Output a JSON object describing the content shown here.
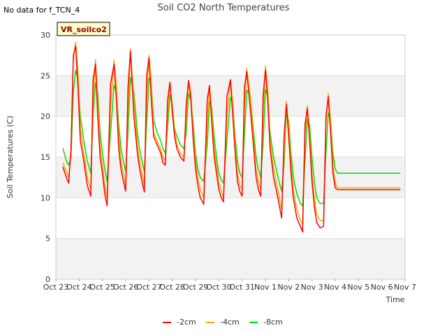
{
  "chart_data": {
    "type": "line",
    "title": "Soil CO2 North Temperatures",
    "note": "No data for f_TCN_4",
    "station_tag": "VR_soilco2",
    "xlabel": "Time",
    "ylabel": "Soil Temperatures (C)",
    "xlim": [
      0,
      15
    ],
    "ylim": [
      0,
      30
    ],
    "x_tick_labels": [
      "Oct 23",
      "Oct 24",
      "Oct 25",
      "Oct 26",
      "Oct 27",
      "Oct 28",
      "Oct 29",
      "Oct 30",
      "Oct 31",
      "Nov 1",
      "Nov 2",
      "Nov 3",
      "Nov 4",
      "Nov 5",
      "Nov 6",
      "Nov 7"
    ],
    "y_ticks": [
      0,
      5,
      10,
      15,
      20,
      25,
      30
    ],
    "grid": true,
    "legend_position": "bottom-center",
    "x_unit": "days since Oct 23",
    "series": [
      {
        "name": "-2cm",
        "color": "#ff0000",
        "x": [
          0.3,
          0.45,
          0.55,
          0.65,
          0.75,
          0.85,
          0.95,
          1.05,
          1.2,
          1.35,
          1.5,
          1.6,
          1.7,
          1.8,
          1.9,
          2.0,
          2.1,
          2.2,
          2.35,
          2.5,
          2.6,
          2.7,
          2.8,
          2.9,
          3.0,
          3.1,
          3.2,
          3.35,
          3.5,
          3.6,
          3.7,
          3.8,
          3.9,
          4.0,
          4.1,
          4.2,
          4.35,
          4.5,
          4.6,
          4.7,
          4.8,
          4.9,
          5.0,
          5.1,
          5.2,
          5.35,
          5.5,
          5.6,
          5.7,
          5.8,
          5.9,
          6.0,
          6.1,
          6.2,
          6.35,
          6.5,
          6.6,
          6.7,
          6.8,
          6.9,
          7.0,
          7.1,
          7.2,
          7.35,
          7.5,
          7.6,
          7.7,
          7.8,
          7.9,
          8.0,
          8.1,
          8.2,
          8.35,
          8.5,
          8.6,
          8.7,
          8.8,
          8.9,
          9.0,
          9.1,
          9.2,
          9.35,
          9.5,
          9.6,
          9.7,
          9.8,
          9.9,
          10.0,
          10.1,
          10.2,
          10.35,
          10.5,
          10.6,
          10.7,
          10.8,
          10.9,
          11.0,
          11.1,
          11.2,
          11.35,
          11.5,
          11.6,
          11.7,
          11.8,
          11.9,
          12.0,
          12.1,
          12.2,
          12.35,
          12.5,
          12.6,
          12.7,
          12.8,
          12.9,
          13.0,
          13.1,
          13.2,
          13.35,
          13.5,
          13.6,
          13.7,
          13.8,
          13.9,
          14.0,
          14.1,
          14.2,
          14.35,
          14.5,
          14.6,
          14.7,
          14.8
        ],
        "values": [
          13.8,
          12.5,
          11.8,
          16.0,
          27.5,
          28.6,
          23.5,
          17.0,
          14.5,
          11.5,
          10.2,
          24.5,
          26.4,
          20.0,
          15.0,
          13.0,
          10.5,
          9.0,
          24.0,
          26.4,
          22.0,
          16.0,
          13.5,
          12.0,
          10.8,
          23.5,
          28.0,
          20.0,
          15.5,
          13.5,
          12.0,
          10.7,
          25.0,
          27.2,
          22.0,
          17.5,
          16.5,
          15.5,
          14.3,
          14.0,
          22.0,
          24.2,
          20.5,
          17.5,
          16.0,
          15.0,
          14.5,
          21.5,
          24.4,
          22.0,
          17.0,
          13.5,
          11.5,
          10.0,
          9.2,
          22.0,
          23.8,
          19.0,
          15.0,
          13.0,
          11.0,
          10.0,
          9.5,
          22.5,
          24.5,
          20.0,
          15.5,
          12.0,
          10.8,
          10.2,
          23.5,
          25.5,
          21.0,
          16.0,
          12.5,
          11.0,
          10.2,
          22.5,
          25.7,
          22.0,
          16.0,
          12.5,
          10.5,
          9.0,
          7.5,
          17.5,
          21.5,
          17.5,
          13.0,
          10.0,
          7.5,
          6.5,
          5.8,
          19.0,
          21.0,
          17.0,
          12.0,
          9.0,
          7.0,
          6.3,
          6.5,
          20.0,
          22.4,
          18.0,
          13.0,
          11.2,
          11.0,
          11.0,
          11.0,
          11.0,
          11.0,
          11.0,
          11.0,
          11.0,
          11.0,
          11.0,
          11.0,
          11.0,
          11.0,
          11.0,
          11.0,
          11.0,
          11.0,
          11.0,
          11.0,
          11.0,
          11.0,
          11.0,
          11.0,
          11.0,
          11.0
        ]
      },
      {
        "name": "-4cm",
        "color": "#ffa500",
        "x": [
          0.3,
          0.45,
          0.55,
          0.65,
          0.75,
          0.85,
          0.95,
          1.05,
          1.2,
          1.35,
          1.5,
          1.6,
          1.7,
          1.8,
          1.9,
          2.0,
          2.1,
          2.2,
          2.35,
          2.5,
          2.6,
          2.7,
          2.8,
          2.9,
          3.0,
          3.1,
          3.2,
          3.35,
          3.5,
          3.6,
          3.7,
          3.8,
          3.9,
          4.0,
          4.1,
          4.2,
          4.35,
          4.5,
          4.6,
          4.7,
          4.8,
          4.9,
          5.0,
          5.1,
          5.2,
          5.35,
          5.5,
          5.6,
          5.7,
          5.8,
          5.9,
          6.0,
          6.1,
          6.2,
          6.35,
          6.5,
          6.6,
          6.7,
          6.8,
          6.9,
          7.0,
          7.1,
          7.2,
          7.35,
          7.5,
          7.6,
          7.7,
          7.8,
          7.9,
          8.0,
          8.1,
          8.2,
          8.35,
          8.5,
          8.6,
          8.7,
          8.8,
          8.9,
          9.0,
          9.1,
          9.2,
          9.35,
          9.5,
          9.6,
          9.7,
          9.8,
          9.9,
          10.0,
          10.1,
          10.2,
          10.35,
          10.5,
          10.6,
          10.7,
          10.8,
          10.9,
          11.0,
          11.1,
          11.2,
          11.35,
          11.5,
          11.6,
          11.7,
          11.8,
          11.9,
          12.0,
          12.1,
          12.2,
          12.35,
          12.5,
          12.6,
          12.7,
          12.8,
          12.9,
          13.0,
          13.1,
          13.2,
          13.35,
          13.5,
          13.6,
          13.7,
          13.8,
          13.9,
          14.0,
          14.1,
          14.2,
          14.35,
          14.5,
          14.6,
          14.7,
          14.8
        ],
        "values": [
          14.3,
          13.2,
          12.5,
          15.5,
          27.0,
          29.1,
          25.5,
          18.5,
          15.5,
          12.5,
          11.0,
          22.0,
          27.0,
          22.0,
          16.5,
          14.0,
          11.5,
          10.0,
          21.0,
          26.9,
          23.5,
          17.5,
          14.5,
          13.0,
          11.5,
          20.5,
          28.3,
          22.0,
          16.5,
          14.5,
          13.0,
          11.5,
          22.0,
          27.5,
          24.0,
          18.0,
          17.0,
          16.0,
          15.0,
          14.5,
          20.0,
          24.0,
          21.5,
          18.0,
          16.5,
          15.5,
          15.0,
          19.5,
          24.3,
          23.0,
          18.0,
          14.5,
          12.5,
          11.0,
          10.0,
          19.0,
          23.7,
          20.5,
          16.0,
          14.0,
          12.0,
          10.8,
          10.0,
          20.0,
          24.5,
          21.5,
          16.5,
          13.0,
          11.5,
          11.0,
          21.0,
          25.9,
          22.5,
          17.0,
          13.5,
          12.0,
          11.0,
          20.0,
          26.2,
          23.5,
          17.0,
          13.5,
          11.5,
          10.0,
          8.5,
          15.0,
          21.8,
          19.0,
          14.0,
          11.0,
          8.5,
          7.2,
          6.8,
          17.5,
          21.3,
          18.0,
          13.0,
          10.0,
          8.0,
          7.2,
          7.2,
          19.0,
          22.8,
          19.5,
          14.0,
          11.8,
          11.2,
          11.2,
          11.2,
          11.2,
          11.2,
          11.2,
          11.2,
          11.2,
          11.2,
          11.2,
          11.2,
          11.2,
          11.2,
          11.2,
          11.2,
          11.2,
          11.2,
          11.2,
          11.2,
          11.2,
          11.2,
          11.2,
          11.2,
          11.2,
          11.2
        ]
      },
      {
        "name": "-8cm",
        "color": "#00e000",
        "x": [
          0.3,
          0.45,
          0.55,
          0.65,
          0.75,
          0.85,
          0.95,
          1.05,
          1.2,
          1.35,
          1.5,
          1.6,
          1.7,
          1.8,
          1.9,
          2.0,
          2.1,
          2.2,
          2.35,
          2.5,
          2.6,
          2.7,
          2.8,
          2.9,
          3.0,
          3.1,
          3.2,
          3.35,
          3.5,
          3.6,
          3.7,
          3.8,
          3.9,
          4.0,
          4.1,
          4.2,
          4.35,
          4.5,
          4.6,
          4.7,
          4.8,
          4.9,
          5.0,
          5.1,
          5.2,
          5.35,
          5.5,
          5.6,
          5.7,
          5.8,
          5.9,
          6.0,
          6.1,
          6.2,
          6.35,
          6.5,
          6.6,
          6.7,
          6.8,
          6.9,
          7.0,
          7.1,
          7.2,
          7.35,
          7.5,
          7.6,
          7.7,
          7.8,
          7.9,
          8.0,
          8.1,
          8.2,
          8.35,
          8.5,
          8.6,
          8.7,
          8.8,
          8.9,
          9.0,
          9.1,
          9.2,
          9.35,
          9.5,
          9.6,
          9.7,
          9.8,
          9.9,
          10.0,
          10.1,
          10.2,
          10.35,
          10.5,
          10.6,
          10.7,
          10.8,
          10.9,
          11.0,
          11.1,
          11.2,
          11.35,
          11.5,
          11.6,
          11.7,
          11.8,
          11.9,
          12.0,
          12.1,
          12.2,
          12.35,
          12.5,
          12.6,
          12.7,
          12.8,
          12.9,
          13.0,
          13.1,
          13.2,
          13.35,
          13.5,
          13.6,
          13.7,
          13.8,
          13.9,
          14.0,
          14.1,
          14.2,
          14.35,
          14.5,
          14.6,
          14.7,
          14.8
        ],
        "values": [
          16.1,
          14.5,
          14.0,
          15.0,
          23.0,
          25.7,
          24.5,
          20.0,
          17.0,
          14.5,
          13.0,
          20.0,
          24.1,
          23.0,
          18.0,
          15.5,
          13.5,
          12.0,
          18.0,
          23.8,
          23.0,
          19.0,
          16.0,
          14.5,
          13.2,
          18.0,
          24.8,
          23.0,
          18.0,
          16.0,
          14.5,
          13.2,
          19.0,
          24.7,
          24.0,
          19.5,
          18.0,
          17.0,
          16.0,
          15.5,
          18.5,
          22.6,
          21.5,
          18.5,
          17.5,
          16.5,
          16.0,
          18.0,
          22.8,
          22.0,
          19.0,
          15.5,
          13.5,
          12.5,
          12.0,
          16.5,
          21.8,
          21.0,
          17.5,
          15.0,
          13.0,
          12.2,
          11.8,
          17.0,
          22.3,
          21.5,
          17.5,
          14.5,
          13.0,
          12.5,
          17.5,
          23.2,
          22.5,
          18.0,
          15.0,
          13.5,
          12.5,
          16.5,
          23.3,
          22.5,
          18.0,
          15.0,
          13.0,
          11.8,
          10.8,
          14.0,
          20.3,
          19.5,
          15.5,
          12.5,
          10.5,
          9.3,
          9.0,
          14.5,
          19.6,
          19.0,
          15.0,
          12.0,
          10.0,
          9.3,
          9.3,
          15.5,
          20.4,
          19.5,
          15.5,
          13.5,
          13.0,
          13.0,
          13.0,
          13.0,
          13.0,
          13.0,
          13.0,
          13.0,
          13.0,
          13.0,
          13.0,
          13.0,
          13.0,
          13.0,
          13.0,
          13.0,
          13.0,
          13.0,
          13.0,
          13.0,
          13.0,
          13.0,
          13.0,
          13.0,
          13.0
        ]
      }
    ]
  }
}
